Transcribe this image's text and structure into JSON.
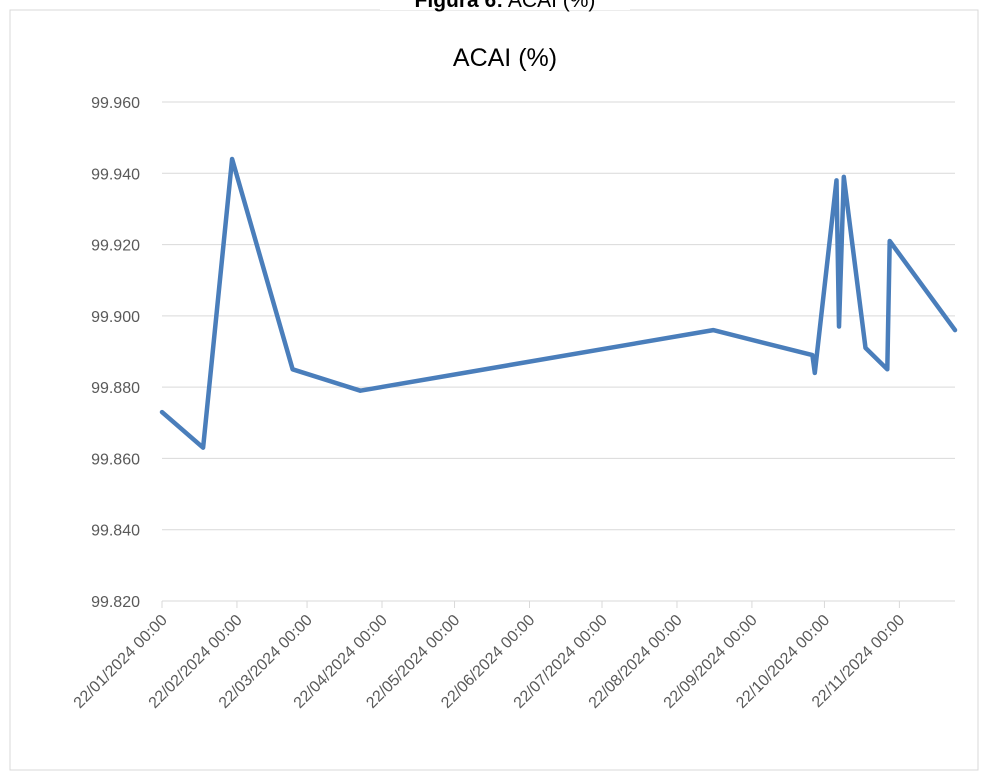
{
  "heading": {
    "label": "Figura 6:",
    "text": "ACAI (%)"
  },
  "chart_data": {
    "type": "line",
    "title": "ACAI (%)",
    "x": [
      "2024-01-22",
      "2024-02-08",
      "2024-02-20",
      "2024-03-16",
      "2024-04-13",
      "2024-09-06",
      "2024-10-17",
      "2024-10-18",
      "2024-10-27",
      "2024-10-28",
      "2024-10-30",
      "2024-11-08",
      "2024-11-17",
      "2024-11-18",
      "2024-12-15"
    ],
    "series": [
      {
        "color": "#4a7ebb",
        "values": [
          99.873,
          99.863,
          99.944,
          99.885,
          99.879,
          99.896,
          99.889,
          99.884,
          99.938,
          99.897,
          99.939,
          99.891,
          99.885,
          99.921,
          99.896
        ]
      }
    ],
    "xlim": [
      "2024-01-22",
      "2024-12-15"
    ],
    "xticks": [
      {
        "value": "2024-01-22",
        "label": "22/01/2024 00:00"
      },
      {
        "value": "2024-02-22",
        "label": "22/02/2024 00:00"
      },
      {
        "value": "2024-03-22",
        "label": "22/03/2024 00:00"
      },
      {
        "value": "2024-04-22",
        "label": "22/04/2024 00:00"
      },
      {
        "value": "2024-05-22",
        "label": "22/05/2024 00:00"
      },
      {
        "value": "2024-06-22",
        "label": "22/06/2024 00:00"
      },
      {
        "value": "2024-07-22",
        "label": "22/07/2024 00:00"
      },
      {
        "value": "2024-08-22",
        "label": "22/08/2024 00:00"
      },
      {
        "value": "2024-09-22",
        "label": "22/09/2024 00:00"
      },
      {
        "value": "2024-10-22",
        "label": "22/10/2024 00:00"
      },
      {
        "value": "2024-11-22",
        "label": "22/11/2024 00:00"
      }
    ],
    "ylim": [
      99.82,
      99.96
    ],
    "yticks": [
      {
        "value": 99.82,
        "label": "99.820"
      },
      {
        "value": 99.84,
        "label": "99.840"
      },
      {
        "value": 99.86,
        "label": "99.860"
      },
      {
        "value": 99.88,
        "label": "99.880"
      },
      {
        "value": 99.9,
        "label": "99.900"
      },
      {
        "value": 99.92,
        "label": "99.920"
      },
      {
        "value": 99.94,
        "label": "99.940"
      },
      {
        "value": 99.96,
        "label": "99.960"
      }
    ],
    "grid": true
  }
}
